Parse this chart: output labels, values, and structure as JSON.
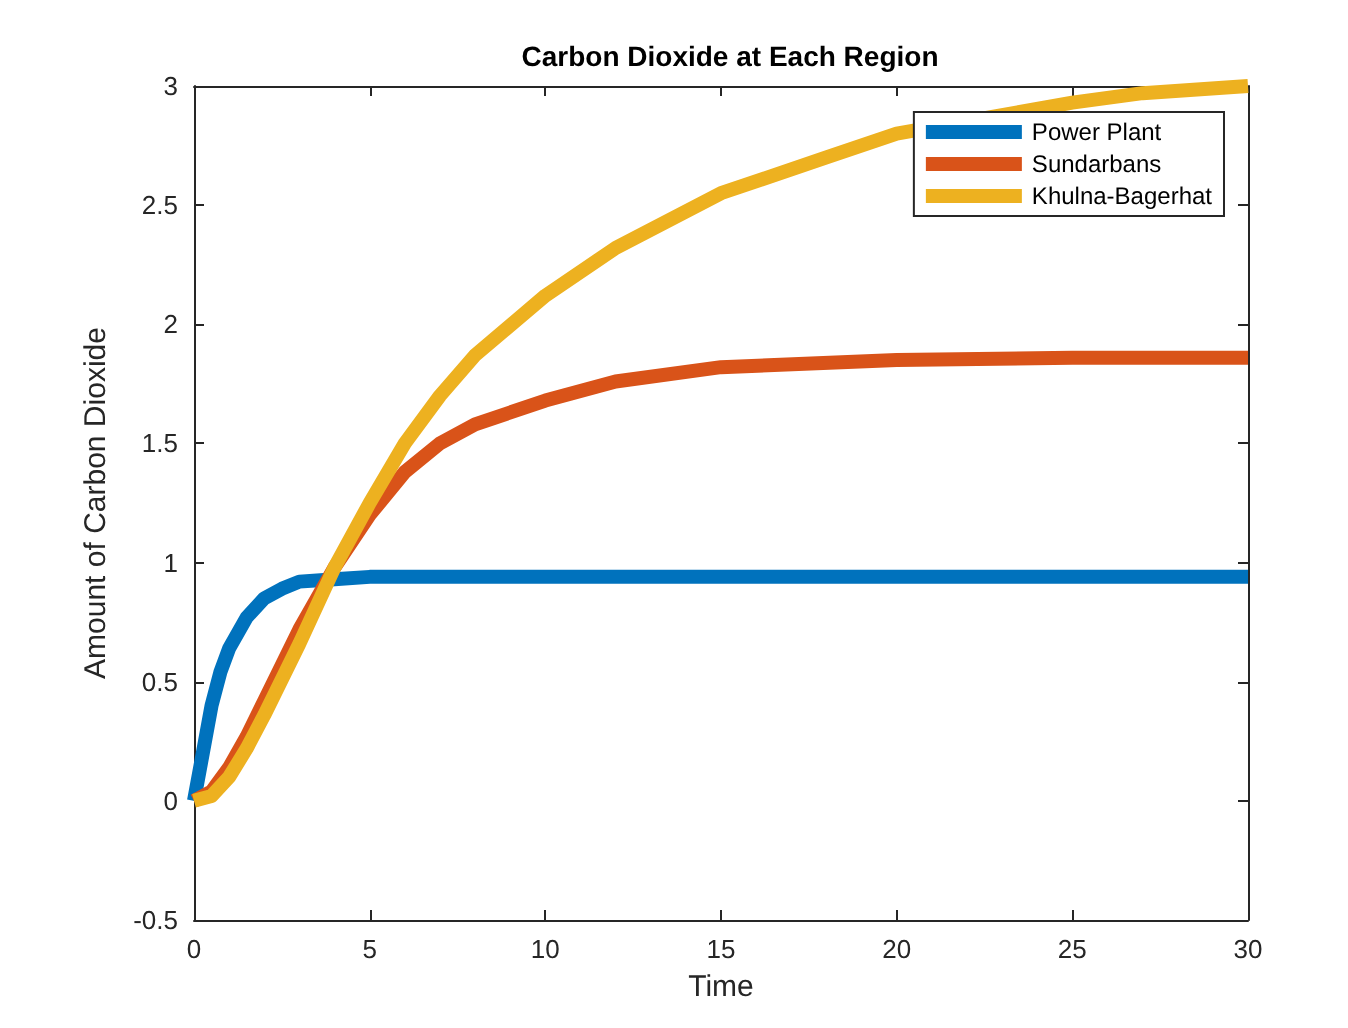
{
  "chart_data": {
    "type": "line",
    "title": "Carbon Dioxide at Each Region",
    "xlabel": "Time",
    "ylabel": "Amount of Carbon Dioxide",
    "xlim": [
      0,
      30
    ],
    "xticks": [
      0,
      5,
      10,
      15,
      20,
      25,
      30
    ],
    "ylim": [
      -0.5,
      3
    ],
    "yticks": [
      -0.5,
      0,
      0.5,
      1,
      1.5,
      2,
      2.5,
      3
    ],
    "grid": false,
    "legend": "top right",
    "marker": "none",
    "line_style": "solid",
    "series": [
      {
        "name": "Power Plant",
        "color": "#0072bd",
        "x": [
          0,
          0.25,
          0.5,
          0.75,
          1,
          1.5,
          2,
          2.5,
          3,
          4,
          5,
          10,
          15,
          20,
          25,
          30
        ],
        "values": [
          0,
          0.2,
          0.4,
          0.54,
          0.64,
          0.77,
          0.85,
          0.89,
          0.92,
          0.93,
          0.94,
          0.94,
          0.94,
          0.94,
          0.94,
          0.94
        ]
      },
      {
        "name": "Sundarbans",
        "color": "#d95319",
        "x": [
          0,
          0.5,
          1,
          1.5,
          2,
          3,
          4,
          5,
          6,
          7,
          8,
          10,
          12,
          15,
          20,
          25,
          30
        ],
        "values": [
          0,
          0.04,
          0.14,
          0.27,
          0.42,
          0.72,
          0.98,
          1.2,
          1.38,
          1.5,
          1.58,
          1.68,
          1.76,
          1.82,
          1.85,
          1.86,
          1.86
        ]
      },
      {
        "name": "Khulna-Bagerhat",
        "color": "#edb120",
        "x": [
          0,
          0.5,
          1,
          1.5,
          2,
          3,
          4,
          5,
          6,
          7,
          8,
          10,
          12,
          15,
          18,
          20,
          25,
          27,
          30
        ],
        "values": [
          0,
          0.02,
          0.1,
          0.22,
          0.36,
          0.66,
          0.98,
          1.25,
          1.5,
          1.7,
          1.87,
          2.12,
          2.32,
          2.55,
          2.7,
          2.8,
          2.93,
          2.97,
          3.0
        ]
      }
    ]
  }
}
